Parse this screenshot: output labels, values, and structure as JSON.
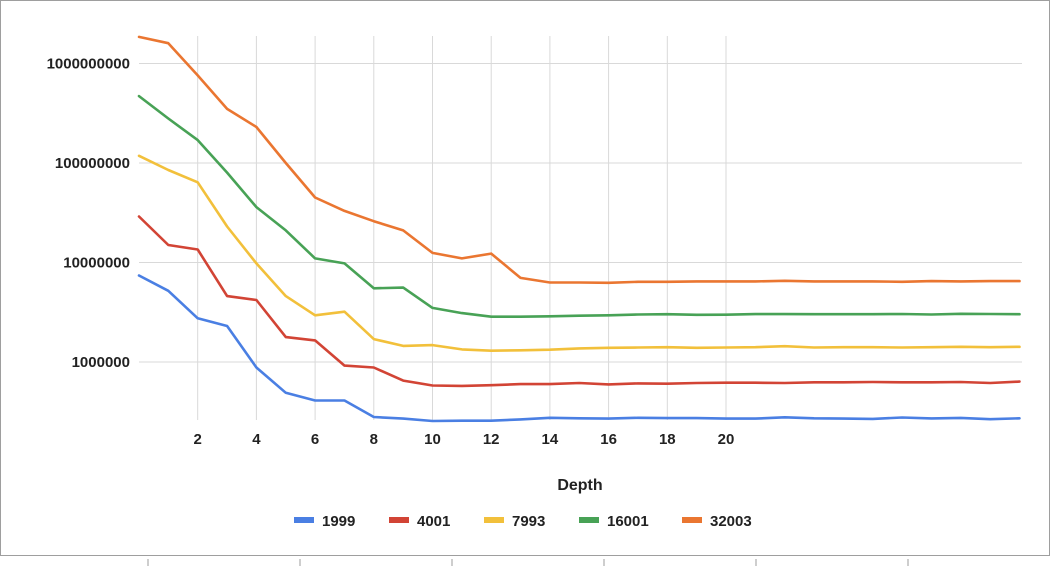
{
  "chart_data": {
    "type": "line",
    "xlabel": "Depth",
    "ylabel": "",
    "title": "",
    "y_scale": "log",
    "ylim": [
      250000,
      2000000000
    ],
    "xlim": [
      0,
      30
    ],
    "x_ticks": [
      2,
      4,
      6,
      8,
      10,
      12,
      14,
      16,
      18,
      20
    ],
    "y_ticks": [
      1000000,
      10000000,
      100000000,
      1000000000
    ],
    "y_tick_labels": [
      "1000000",
      "10000000",
      "100000000",
      "1000000000"
    ],
    "grid": true,
    "legend_position": "bottom",
    "x": [
      0,
      1,
      2,
      3,
      4,
      5,
      6,
      7,
      8,
      9,
      10,
      11,
      12,
      13,
      14,
      15,
      16,
      17,
      18,
      19,
      20,
      21,
      22,
      23,
      24,
      25,
      26,
      27,
      28,
      29,
      30
    ],
    "series": [
      {
        "name": "1999",
        "color": "#4a7fe3",
        "values": [
          7400000,
          5200000,
          2750000,
          2300000,
          880000,
          490000,
          410000,
          410000,
          280000,
          270000,
          255000,
          257000,
          257000,
          265000,
          275000,
          272000,
          270000,
          275000,
          273000,
          273000,
          270000,
          270000,
          278000,
          272000,
          270000,
          268000,
          277000,
          271000,
          274000,
          266000,
          272000
        ]
      },
      {
        "name": "4001",
        "color": "#d24435",
        "values": [
          29000000,
          15000000,
          13500000,
          4600000,
          4200000,
          1780000,
          1650000,
          920000,
          880000,
          650000,
          580000,
          575000,
          585000,
          600000,
          600000,
          615000,
          595000,
          610000,
          605000,
          615000,
          620000,
          620000,
          615000,
          625000,
          625000,
          630000,
          625000,
          625000,
          630000,
          615000,
          635000
        ]
      },
      {
        "name": "7993",
        "color": "#f2c03b",
        "values": [
          118000000,
          85000000,
          64000000,
          23000000,
          9800000,
          4600000,
          2950000,
          3200000,
          1700000,
          1450000,
          1480000,
          1340000,
          1300000,
          1310000,
          1330000,
          1370000,
          1390000,
          1400000,
          1410000,
          1390000,
          1400000,
          1410000,
          1440000,
          1400000,
          1410000,
          1410000,
          1400000,
          1410000,
          1420000,
          1410000,
          1420000
        ]
      },
      {
        "name": "16001",
        "color": "#48a256",
        "values": [
          470000000,
          280000000,
          170000000,
          80000000,
          36000000,
          21000000,
          11000000,
          9800000,
          5500000,
          5600000,
          3500000,
          3100000,
          2850000,
          2850000,
          2880000,
          2920000,
          2950000,
          3000000,
          3020000,
          2980000,
          2990000,
          3030000,
          3030000,
          3020000,
          3020000,
          3020000,
          3040000,
          3000000,
          3050000,
          3040000,
          3020000
        ]
      },
      {
        "name": "32003",
        "color": "#ea7631",
        "values": [
          1850000000,
          1600000000,
          760000000,
          350000000,
          230000000,
          100000000,
          45000000,
          33000000,
          26000000,
          21000000,
          12500000,
          11000000,
          12300000,
          7000000,
          6300000,
          6300000,
          6250000,
          6400000,
          6400000,
          6450000,
          6450000,
          6450000,
          6550000,
          6450000,
          6450000,
          6450000,
          6400000,
          6500000,
          6450000,
          6500000,
          6500000
        ]
      }
    ]
  }
}
